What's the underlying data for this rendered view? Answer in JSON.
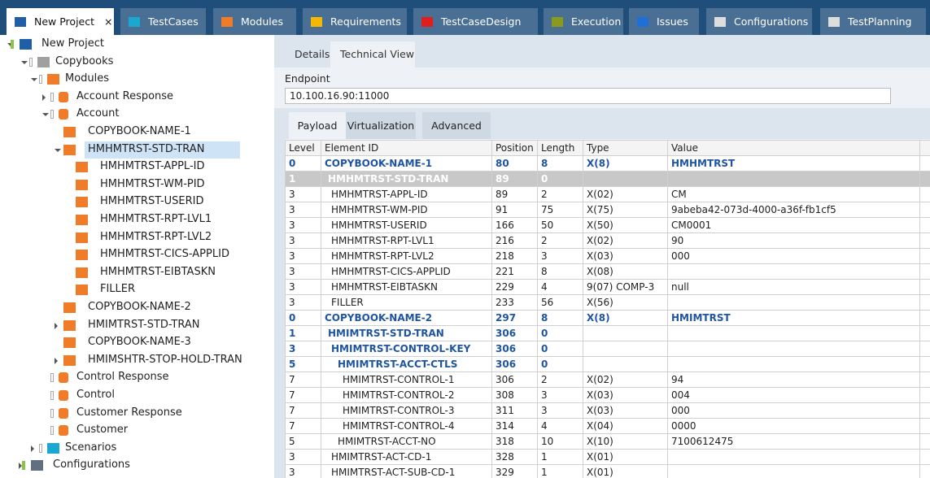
{
  "tabs": [
    {
      "label": "New Project",
      "close": "×",
      "color": "#1e5fa8"
    },
    {
      "label": "TestCases",
      "color": "#1ba8d0"
    },
    {
      "label": "Modules",
      "color": "#f07c2a"
    },
    {
      "label": "Requirements",
      "color": "#f5b800"
    },
    {
      "label": "TestCaseDesign",
      "color": "#e01e1e"
    },
    {
      "label": "Execution",
      "color": "#8a9a1e"
    },
    {
      "label": "Issues",
      "color": "#1e6fd6"
    },
    {
      "label": "Configurations",
      "color": "#dddddd"
    },
    {
      "label": "TestPlanning",
      "color": "#dddddd"
    }
  ],
  "active_tab": 0,
  "tree": {
    "nodes": [
      "New Project",
      "Copybooks",
      "Modules",
      "Account Response",
      "Account",
      "COPYBOOK-NAME-1",
      "HMHMTRST-STD-TRAN",
      "HMHMTRST-APPL-ID",
      "HMHMTRST-WM-PID",
      "HMHMTRST-USERID",
      "HMHMTRST-RPT-LVL1",
      "HMHMTRST-RPT-LVL2",
      "HMHMTRST-CICS-APPLID",
      "HMHMTRST-EIBTASKN",
      "FILLER",
      "COPYBOOK-NAME-2",
      "HMIMTRST-STD-TRAN",
      "COPYBOOK-NAME-3",
      "HMIMSHTR-STOP-HOLD-TRAN",
      "Control Response",
      "Control",
      "Customer Response",
      "Customer",
      "Scenarios",
      "Configurations"
    ],
    "selected": 6
  },
  "detail_tabs": [
    "Details",
    "Technical View"
  ],
  "active_detail_tab": 1,
  "endpoint": {
    "label": "Endpoint",
    "value": "10.100.16.90:11000"
  },
  "sub_tabs": [
    "Payload",
    "Virtualization",
    "Advanced"
  ],
  "active_sub_tab": 0,
  "table": {
    "columns": [
      "Level",
      "Element ID",
      "Position",
      "Length",
      "Type",
      "Value"
    ],
    "selected_row": 1,
    "rows": [
      [
        "0",
        "COPYBOOK-NAME-1",
        "80",
        "8",
        "X(8)",
        "HMHMTRST"
      ],
      [
        "1",
        "HMHMTRST-STD-TRAN",
        "89",
        "0",
        null,
        null
      ],
      [
        "3",
        "HMHMTRST-APPL-ID",
        "89",
        "2",
        "X(02)",
        "CM"
      ],
      [
        "3",
        "HMHMTRST-WM-PID",
        "91",
        "75",
        "X(75)",
        "9abeba42-073d-4000-a36f-fb1cf5"
      ],
      [
        "3",
        "HMHMTRST-USERID",
        "166",
        "50",
        "X(50)",
        "CM0001"
      ],
      [
        "3",
        "HMHMTRST-RPT-LVL1",
        "216",
        "2",
        "X(02)",
        "90"
      ],
      [
        "3",
        "HMHMTRST-RPT-LVL2",
        "218",
        "3",
        "X(03)",
        "000"
      ],
      [
        "3",
        "HMHMTRST-CICS-APPLID",
        "221",
        "8",
        "X(08)",
        null
      ],
      [
        "3",
        "HMHMTRST-EIBTASKN",
        "229",
        "4",
        "9(07) COMP-3",
        "null"
      ],
      [
        "3",
        "FILLER",
        "233",
        "56",
        "X(56)",
        null
      ],
      [
        "0",
        "COPYBOOK-NAME-2",
        "297",
        "8",
        "X(8)",
        "HMIMTRST"
      ],
      [
        "1",
        "HMIMTRST-STD-TRAN",
        "306",
        "0",
        null,
        null
      ],
      [
        "3",
        "HMIMTRST-CONTROL-KEY",
        "306",
        "0",
        null,
        null
      ],
      [
        "5",
        "HMIMTRST-ACCT-CTLS",
        "306",
        "0",
        null,
        null
      ],
      [
        "7",
        "HMIMTRST-CONTROL-1",
        "306",
        "2",
        "X(02)",
        "94"
      ],
      [
        "7",
        "HMIMTRST-CONTROL-2",
        "308",
        "3",
        "X(03)",
        "004"
      ],
      [
        "7",
        "HMIMTRST-CONTROL-3",
        "311",
        "3",
        "X(03)",
        "000"
      ],
      [
        "7",
        "HMIMTRST-CONTROL-4",
        "314",
        "4",
        "X(04)",
        "0000"
      ],
      [
        "5",
        "HMIMTRST-ACCT-NO",
        "318",
        "10",
        "X(10)",
        "7100612475"
      ],
      [
        "3",
        "HMIMTRST-ACT-CD-1",
        "328",
        "1",
        "X(01)",
        null
      ],
      [
        "3",
        "HMIMTRST-ACT-SUB-CD-1",
        "329",
        "1",
        "X(01)",
        null
      ]
    ]
  }
}
